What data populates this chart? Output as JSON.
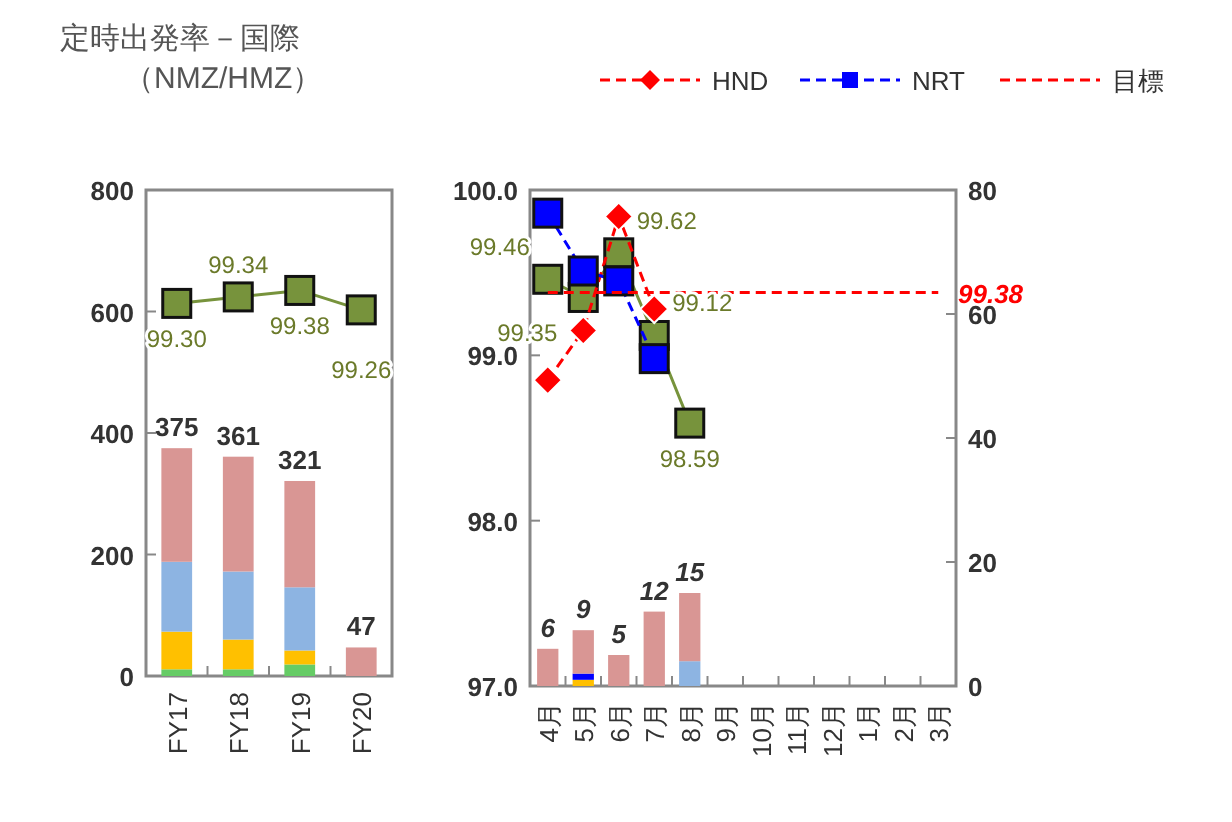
{
  "chart_data": [
    {
      "type": "bar",
      "title": "定時出発率－国際",
      "subtitle": "（NMZ/HMZ）",
      "categories": [
        "FY17",
        "FY18",
        "FY19",
        "FY20"
      ],
      "stacked": true,
      "ylim": [
        0,
        800
      ],
      "yticks": [
        0,
        200,
        400,
        600,
        800
      ],
      "y2lim": [
        97,
        100
      ],
      "tick_labels": "xy",
      "grid": false,
      "totals": [
        "375",
        "361",
        "321",
        "47"
      ],
      "series": [
        {
          "type": "bar",
          "color": "#66cc66",
          "values": [
            11,
            11,
            19,
            null
          ]
        },
        {
          "type": "bar",
          "color": "#ffc000",
          "values": [
            62,
            49,
            23,
            null
          ]
        },
        {
          "type": "bar",
          "color": "#8db4e2",
          "values": [
            115,
            112,
            104,
            null
          ]
        },
        {
          "type": "bar",
          "color": "#d99694",
          "values": [
            187,
            189,
            175,
            47
          ]
        },
        {
          "type": "line",
          "axis": "y2",
          "color": "#77933c",
          "marker": "square",
          "line_style": "solid",
          "values": [
            99.3,
            99.34,
            99.38,
            99.26
          ],
          "value_labels": [
            "99.30",
            "99.34",
            "99.38",
            "99.26"
          ]
        }
      ]
    },
    {
      "type": "bar",
      "categories": [
        "4月",
        "5月",
        "6月",
        "7月",
        "8月",
        "9月",
        "10月",
        "11月",
        "12月",
        "1月",
        "2月",
        "3月"
      ],
      "stacked": true,
      "ylim": [
        97,
        100
      ],
      "yticks": [
        {
          "value": 97,
          "label": "97.0"
        },
        {
          "value": 98,
          "label": "98.0"
        },
        {
          "value": 99,
          "label": "99.0"
        },
        {
          "value": 100,
          "label": "100.0"
        }
      ],
      "y2lim": [
        0,
        80
      ],
      "y2ticks": [
        0,
        20,
        40,
        60,
        80
      ],
      "grid": false,
      "legend": "top right",
      "totals": [
        "6",
        "9",
        "5",
        "12",
        "15",
        null,
        null,
        null,
        null,
        null,
        null,
        null
      ],
      "annotations": [
        {
          "text": "99.38",
          "x": "3月",
          "y": 99.38
        }
      ],
      "series": [
        {
          "type": "bar",
          "axis": "y2",
          "color": "#ffc000",
          "values": [
            null,
            1,
            null,
            null,
            null,
            null,
            null,
            null,
            null,
            null,
            null,
            null
          ]
        },
        {
          "type": "bar",
          "axis": "y2",
          "color": "#0000ff",
          "values": [
            null,
            1,
            null,
            null,
            null,
            null,
            null,
            null,
            null,
            null,
            null,
            null
          ]
        },
        {
          "type": "bar",
          "axis": "y2",
          "color": "#8db4e2",
          "values": [
            null,
            null,
            null,
            null,
            4,
            null,
            null,
            null,
            null,
            null,
            null,
            null
          ]
        },
        {
          "type": "bar",
          "axis": "y2",
          "color": "#d99694",
          "values": [
            6,
            7,
            5,
            12,
            11,
            null,
            null,
            null,
            null,
            null,
            null,
            null
          ]
        },
        {
          "type": "line",
          "color": "#77933c",
          "marker": "square",
          "line_style": "solid",
          "values": [
            99.46,
            99.35,
            99.62,
            99.12,
            98.59,
            null,
            null,
            null,
            null,
            null,
            null,
            null
          ],
          "value_labels": [
            "99.46",
            "99.35",
            "99.62",
            "99.12",
            "98.59",
            null,
            null,
            null,
            null,
            null,
            null,
            null
          ]
        },
        {
          "type": "line",
          "name": "HND",
          "color": "#ff0000",
          "marker": "diamond",
          "line_style": "dashed",
          "values": [
            98.85,
            99.15,
            99.84,
            99.28,
            null,
            null,
            null,
            null,
            null,
            null,
            null,
            null
          ]
        },
        {
          "type": "line",
          "name": "NRT",
          "color": "#0000ff",
          "marker": "square",
          "line_style": "dashed",
          "values": [
            99.86,
            99.51,
            99.45,
            98.98,
            null,
            null,
            null,
            null,
            null,
            null,
            null,
            null
          ]
        },
        {
          "type": "line",
          "name": "目標",
          "color": "#ff0000",
          "marker": "none",
          "line_style": "dashed",
          "values": [
            99.38,
            99.38,
            99.38,
            99.38,
            99.38,
            99.38,
            99.38,
            99.38,
            99.38,
            99.38,
            99.38,
            99.38
          ]
        }
      ]
    }
  ]
}
